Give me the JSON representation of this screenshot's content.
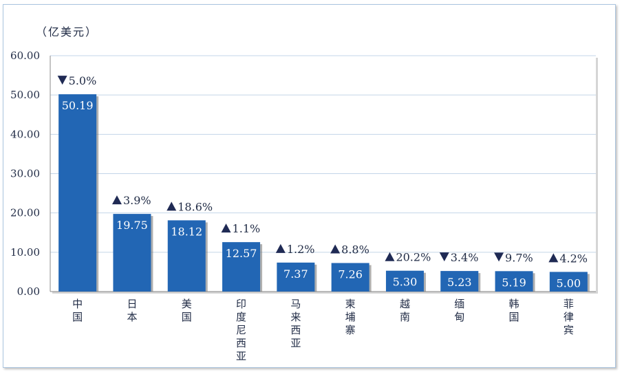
{
  "chart_data": {
    "type": "bar",
    "unit_label": "（亿美元）",
    "ylim": [
      0,
      60
    ],
    "yticks": [
      "0.00",
      "10.00",
      "20.00",
      "30.00",
      "40.00",
      "50.00",
      "60.00"
    ],
    "grid": true,
    "categories": [
      "中国",
      "日本",
      "美国",
      "印度尼西亚",
      "马来西亚",
      "柬埔寨",
      "越南",
      "缅甸",
      "韩国",
      "菲律宾"
    ],
    "values": [
      50.19,
      19.75,
      18.12,
      12.57,
      7.37,
      7.26,
      5.3,
      5.23,
      5.19,
      5.0
    ],
    "value_labels": [
      "50.19",
      "19.75",
      "18.12",
      "12.57",
      "7.37",
      "7.26",
      "5.30",
      "5.23",
      "5.19",
      "5.00"
    ],
    "changes": [
      {
        "dir": "down",
        "text": "5.0%"
      },
      {
        "dir": "up",
        "text": "3.9%"
      },
      {
        "dir": "up",
        "text": "18.6%"
      },
      {
        "dir": "up",
        "text": "1.1%"
      },
      {
        "dir": "up",
        "text": "1.2%"
      },
      {
        "dir": "up",
        "text": "8.8%"
      },
      {
        "dir": "up",
        "text": "20.2%"
      },
      {
        "dir": "down",
        "text": "3.4%"
      },
      {
        "dir": "down",
        "text": "9.7%"
      },
      {
        "dir": "up",
        "text": "4.2%"
      }
    ],
    "colors": {
      "bar": "#2266b4",
      "grid": "#c3d5e8",
      "text": "#1f2a44"
    }
  }
}
